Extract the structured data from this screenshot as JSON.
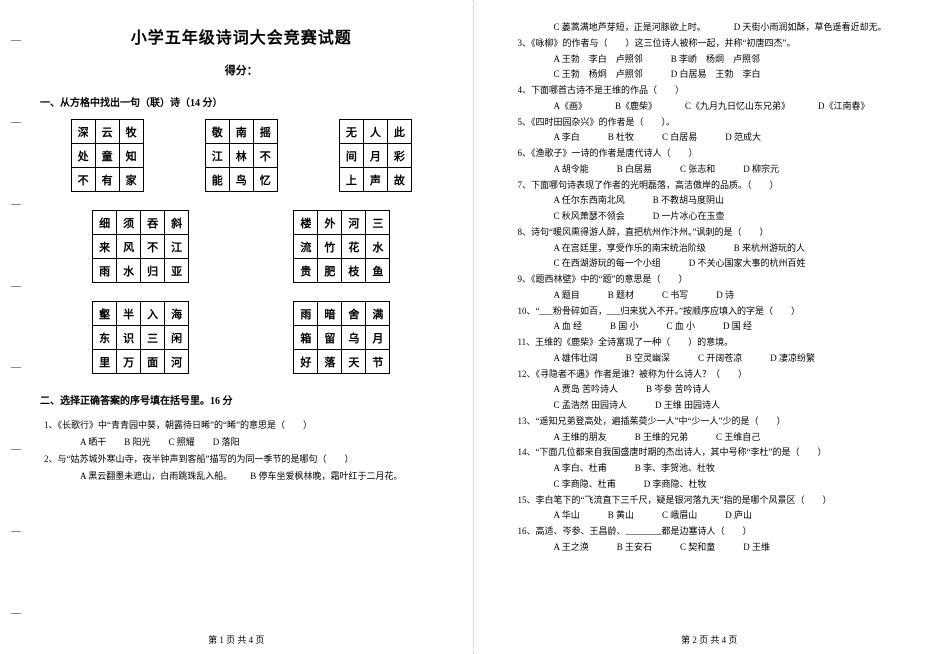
{
  "title": "小学五年级诗词大会竞赛试题",
  "score_label": "得分：",
  "section1_head": "一、从方格中找出一句（联）诗（14 分）",
  "section2_head": "二、选择正确答案的序号填在括号里。16 分",
  "grids": {
    "row1": [
      [
        [
          "深",
          "云",
          "牧"
        ],
        [
          "处",
          "童",
          "知"
        ],
        [
          "不",
          "有",
          "家"
        ]
      ],
      [
        [
          "敬",
          "南",
          "摇"
        ],
        [
          "江",
          "林",
          "不"
        ],
        [
          "能",
          "鸟",
          "忆"
        ]
      ],
      [
        [
          "无",
          "人",
          "此"
        ],
        [
          "间",
          "月",
          "彩"
        ],
        [
          "上",
          "声",
          "故"
        ]
      ]
    ],
    "row2": [
      [
        [
          "细",
          "须",
          "吞",
          "斜"
        ],
        [
          "来",
          "风",
          "不",
          "江"
        ],
        [
          "雨",
          "水",
          "归",
          "亚"
        ]
      ],
      [
        [
          "楼",
          "外",
          "河",
          "三"
        ],
        [
          "流",
          "竹",
          "花",
          "水"
        ],
        [
          "贵",
          "肥",
          "枝",
          "鱼"
        ]
      ]
    ],
    "row3": [
      [
        [
          "壑",
          "半",
          "入",
          "海"
        ],
        [
          "东",
          "识",
          "三",
          "闲"
        ],
        [
          "里",
          "万",
          "面",
          "河"
        ]
      ],
      [
        [
          "雨",
          "暗",
          "舍",
          "满"
        ],
        [
          "箱",
          "留",
          "乌",
          "月"
        ],
        [
          "好",
          "落",
          "天",
          "节"
        ]
      ]
    ]
  },
  "page1_questions": [
    {
      "stem": "1、《长歌行》中“青青园中葵，朝露待日晞”的“晞”的意思是（　　）",
      "opts": [
        "A 晒干",
        "B 阳光",
        "C 照耀",
        "D 落阳"
      ]
    },
    {
      "stem": "2、与“姑苏城外寒山寺，夜半钟声到客船”描写的为同一季节的是哪句（　　）",
      "opts": [
        "A 黑云翻墨未遮山，白雨跳珠乱入船。",
        "B 停车坐爱枫林晚，霜叶红于二月花。"
      ]
    }
  ],
  "page2_lines": [
    {
      "opts": [
        "C 蒌蒿满地芦芽短，正是河豚欲上时。",
        "D 天街小雨润如酥，草色遥看近却无。"
      ]
    },
    {
      "stem": "3、《咏柳》的作者与（　　）这三位诗人被称一起，并称“初唐四杰”。",
      "opts": [
        "A 王勃　李白　卢照邻",
        "B 李峤　杨炯　卢照邻",
        "",
        "C 王勃　杨炯　卢照邻",
        "D 白居易　王勃　李白"
      ]
    },
    {
      "stem": "4、下面哪首古诗不是王维的作品（　　）",
      "opts": [
        "A《画》",
        "B《鹿柴》",
        "C《九月九日忆山东兄弟》",
        "D《江南春》"
      ]
    },
    {
      "stem": "5、《四时田园杂兴》的作者是（　　）。",
      "opts": [
        "A 李白",
        "B 杜牧",
        "C 白居易",
        "D 范成大"
      ]
    },
    {
      "stem": "6、《渔歌子》一诗的作者是唐代诗人（　　）",
      "opts": [
        "A 胡令能",
        "B 白居易",
        "C 张志和",
        "D 柳宗元"
      ]
    },
    {
      "stem": "7、下面哪句诗表现了作者的光明磊落，高洁傲岸的品质。（　　）",
      "opts": [
        "A 任尔东西南北风",
        "B 不教胡马度阴山",
        "",
        "C 秋风萧瑟不领会",
        "D 一片冰心在玉壶"
      ]
    },
    {
      "stem": "8、诗句“暖风熏得游人醉，直把杭州作汴州。”讽刺的是（　　）",
      "opts": [
        "A 在宫廷里，享受作乐的南宋统治阶级",
        "B 来杭州游玩的人",
        "",
        "C 在西湖游玩的每一个小组",
        "D 不关心国家大事的杭州百姓"
      ]
    },
    {
      "stem": "9、《题西林壁》中的“题”的意思是（　　）",
      "opts": [
        "A 题目",
        "B 题材",
        "C 书写",
        "D 诗"
      ]
    },
    {
      "stem": "10、“___粉骨碎如百，___归来犹入不开。”按顺序应填入的字是（　　）",
      "opts": [
        "A 血  经",
        "B 国  小",
        "C 血  小",
        "D 国  经"
      ]
    },
    {
      "stem": "11、王维的《鹿柴》全诗富现了一种（　　）的意境。",
      "opts": [
        "A 雄伟壮阔",
        "B 空灵幽深",
        "C 开阔苍凉",
        "D 凄凉纷繁"
      ]
    },
    {
      "stem": "12、《寻隐者不遇》作者是谁？被称为什么诗人？（　　）",
      "opts": [
        "A 贾岛  苦吟诗人",
        "B 岑参  苦吟诗人",
        "",
        "C 孟浩然  田园诗人",
        "D 王维  田园诗人"
      ]
    },
    {
      "stem": "13、“遥知兄弟登高处，遍插茱萸少一人”中“少一人”少的是（　　）",
      "opts": [
        "A 王维的朋友",
        "B 王维的兄弟",
        "C 王维自己"
      ]
    },
    {
      "stem": "14、“下面几位都来自我国盛唐时期的杰出诗人，其中号称“李杜”的是（　　）",
      "opts": [
        "A 李白、杜甫",
        "B 李、李贺池、杜牧",
        "",
        "C 李商隐、杜甫",
        "D 李商隐、杜牧"
      ]
    },
    {
      "stem": "15、李白笔下的“飞流直下三千尺，疑是银河落九天”指的是哪个风景区（　　）",
      "opts": [
        "A 华山",
        "B 黄山",
        "C 峨眉山",
        "D 庐山"
      ]
    },
    {
      "stem": "16、高适、岑参、王昌龄、________都是边塞诗人（　　）",
      "opts": [
        "A 王之涣",
        "B 王安石",
        "C 契和童",
        "D 王维"
      ]
    }
  ],
  "footer1": "第 1 页 共 4 页",
  "footer2": "第 2 页 共 4 页",
  "colors": {
    "text": "#000000",
    "bg": "#ffffff",
    "border": "#000000",
    "binding": "#888888"
  }
}
